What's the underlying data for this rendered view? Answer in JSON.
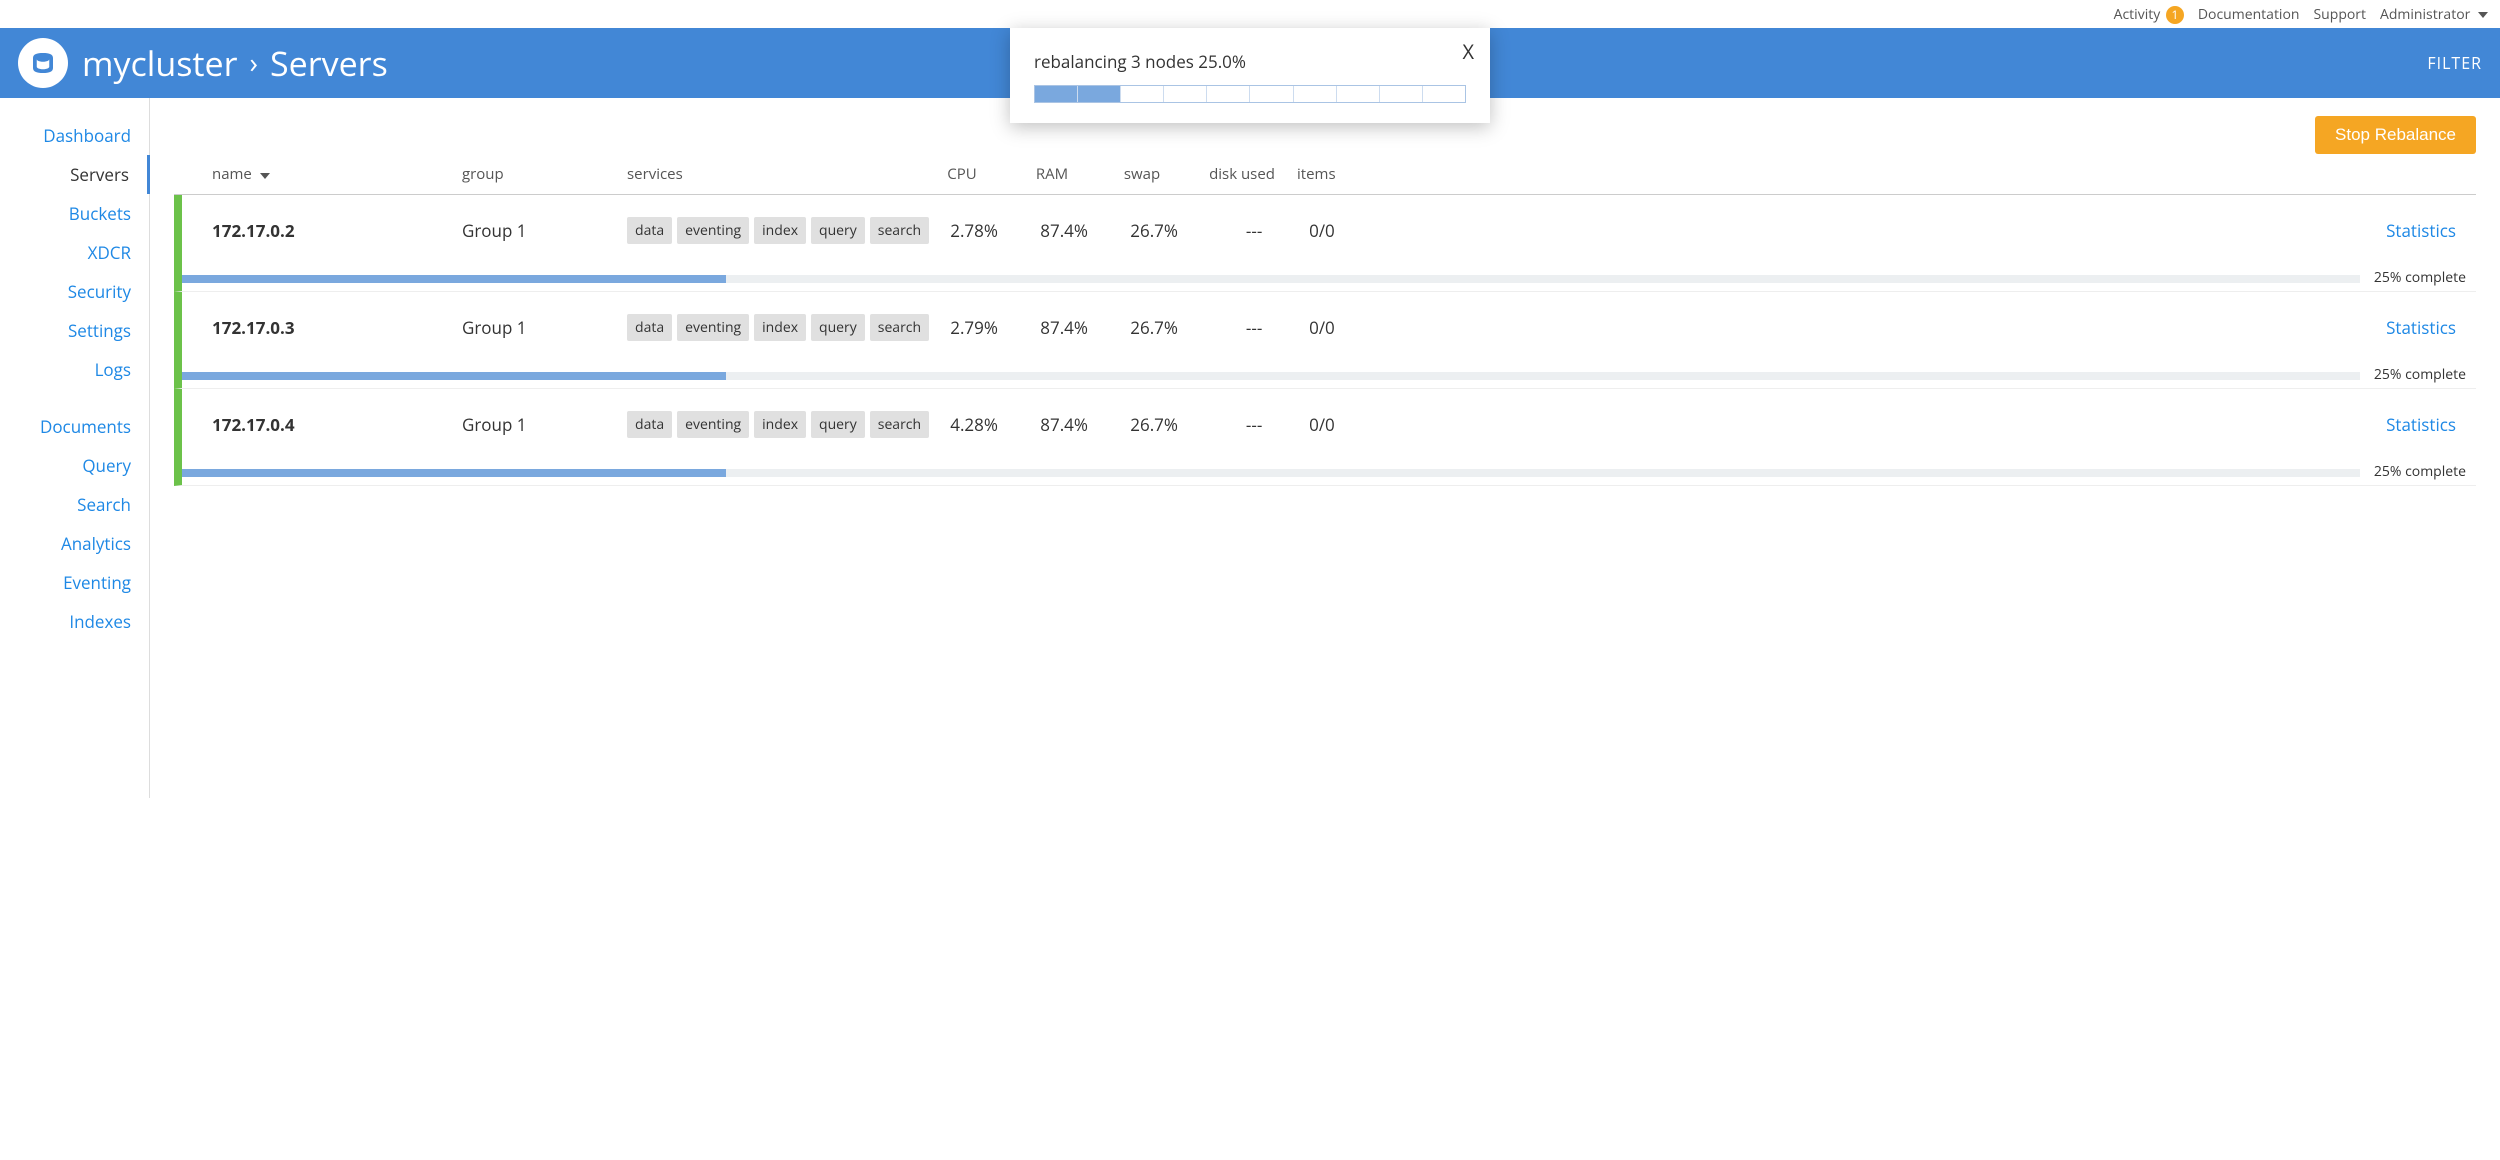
{
  "colors": {
    "header_bg": "#4287d6",
    "accent_orange": "#f5a623",
    "link_blue": "#1e88e5",
    "row_status_green": "#6cc24a",
    "progress_blue": "#7aa8de",
    "progress_track": "#eceff1"
  },
  "topbar": {
    "activity_label": "Activity",
    "activity_count": "1",
    "documentation": "Documentation",
    "support": "Support",
    "administrator": "Administrator"
  },
  "header": {
    "cluster_name": "mycluster",
    "page_title": "Servers",
    "filter_label": "FILTER"
  },
  "popup": {
    "message": "rebalancing 3 nodes 25.0%",
    "segments_total": 10,
    "segments_filled": 2,
    "close_symbol": "X"
  },
  "action": {
    "stop_rebalance": "Stop Rebalance"
  },
  "sidebar": {
    "items": [
      {
        "label": "Dashboard",
        "active": false
      },
      {
        "label": "Servers",
        "active": true
      },
      {
        "label": "Buckets",
        "active": false
      },
      {
        "label": "XDCR",
        "active": false
      },
      {
        "label": "Security",
        "active": false
      },
      {
        "label": "Settings",
        "active": false
      },
      {
        "label": "Logs",
        "active": false
      }
    ],
    "items2": [
      {
        "label": "Documents"
      },
      {
        "label": "Query"
      },
      {
        "label": "Search"
      },
      {
        "label": "Analytics"
      },
      {
        "label": "Eventing"
      },
      {
        "label": "Indexes"
      }
    ]
  },
  "table": {
    "columns": {
      "name": "name",
      "group": "group",
      "services": "services",
      "cpu": "CPU",
      "ram": "RAM",
      "swap": "swap",
      "disk": "disk used",
      "items": "items"
    },
    "statistics_label": "Statistics",
    "progress_label_suffix": " complete"
  },
  "servers": [
    {
      "name": "172.17.0.2",
      "group": "Group 1",
      "services": [
        "data",
        "eventing",
        "index",
        "query",
        "search"
      ],
      "cpu": "2.78%",
      "ram": "87.4%",
      "swap": "26.7%",
      "disk": "---",
      "items": "0/0",
      "progress_pct": 25,
      "progress_label": "25%"
    },
    {
      "name": "172.17.0.3",
      "group": "Group 1",
      "services": [
        "data",
        "eventing",
        "index",
        "query",
        "search"
      ],
      "cpu": "2.79%",
      "ram": "87.4%",
      "swap": "26.7%",
      "disk": "---",
      "items": "0/0",
      "progress_pct": 25,
      "progress_label": "25%"
    },
    {
      "name": "172.17.0.4",
      "group": "Group 1",
      "services": [
        "data",
        "eventing",
        "index",
        "query",
        "search"
      ],
      "cpu": "4.28%",
      "ram": "87.4%",
      "swap": "26.7%",
      "disk": "---",
      "items": "0/0",
      "progress_pct": 25,
      "progress_label": "25%"
    }
  ]
}
